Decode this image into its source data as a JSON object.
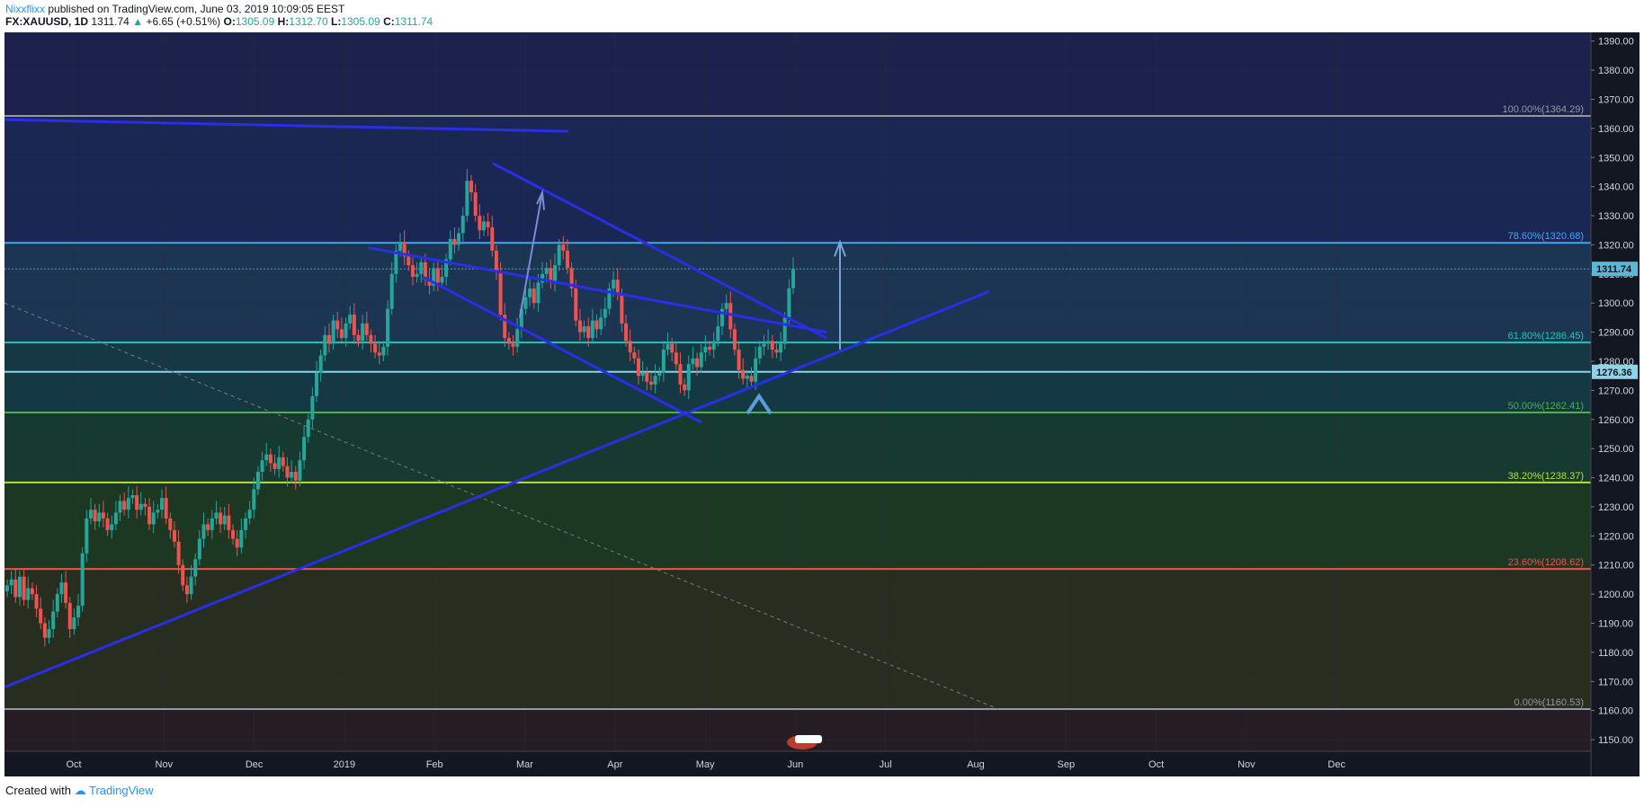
{
  "header": {
    "author": "Nixxflixx",
    "published": "published on TradingView.com, June 03, 2019 10:09:05 EEST",
    "symbol": "FX:XAUUSD, 1D",
    "price": "1311.74",
    "change": "+6.65 (+0.51%)",
    "o_label": "O:",
    "o_value": "1305.09",
    "h_label": "H:",
    "h_value": "1312.70",
    "l_label": "L:",
    "l_value": "1305.09",
    "c_label": "C:",
    "c_value": "1311.74"
  },
  "footer": {
    "created_with": "Created with",
    "brand": "TradingView"
  },
  "colors": {
    "background": "#131722",
    "up": "#26a69a",
    "down": "#ef5350",
    "trendline": "#2a2ee6",
    "price_tag": "#5db6d6",
    "support_tag": "#8fd3e6"
  },
  "chart_data": {
    "type": "candlestick",
    "symbol": "FX:XAUUSD",
    "timeframe": "1D",
    "ylim": [
      1146,
      1393
    ],
    "y_ticks": [
      1150,
      1160,
      1170,
      1180,
      1190,
      1200,
      1210,
      1220,
      1230,
      1240,
      1250,
      1260,
      1270,
      1280,
      1290,
      1300,
      1310,
      1320,
      1330,
      1340,
      1350,
      1360,
      1370,
      1380,
      1390
    ],
    "x_labels": [
      "Oct",
      "Nov",
      "Dec",
      "2019",
      "Feb",
      "Mar",
      "Apr",
      "May",
      "Jun",
      "Jul",
      "Aug",
      "Sep",
      "Oct",
      "Nov",
      "Dec"
    ],
    "last_price": "1311.74",
    "support_price": "1276.36",
    "fib_levels": [
      {
        "label": "100.00%(1364.29)",
        "value": 1364.29,
        "color": "#9598a1"
      },
      {
        "label": "78.60%(1320.68)",
        "value": 1320.68,
        "color": "#42a5f5"
      },
      {
        "label": "61.80%(1286.45)",
        "value": 1286.45,
        "color": "#26c6b0"
      },
      {
        "label": "50.00%(1262.41)",
        "value": 1262.41,
        "color": "#4caf50"
      },
      {
        "label": "38.20%(1238.37)",
        "value": 1238.37,
        "color": "#b6e03a"
      },
      {
        "label": "23.60%(1208.62)",
        "value": 1208.62,
        "color": "#ef5350"
      },
      {
        "label": "0.00%(1160.53)",
        "value": 1160.53,
        "color": "#9598a1"
      }
    ],
    "support_line": 1276.36,
    "candles_close": [
      1203,
      1205,
      1199,
      1206,
      1198,
      1202,
      1200,
      1195,
      1190,
      1185,
      1188,
      1194,
      1200,
      1204,
      1197,
      1188,
      1192,
      1196,
      1214,
      1226,
      1229,
      1225,
      1228,
      1226,
      1222,
      1224,
      1228,
      1232,
      1229,
      1233,
      1234,
      1229,
      1231,
      1230,
      1224,
      1228,
      1229,
      1233,
      1226,
      1222,
      1218,
      1210,
      1203,
      1200,
      1206,
      1212,
      1219,
      1224,
      1222,
      1226,
      1228,
      1224,
      1227,
      1222,
      1219,
      1216,
      1222,
      1226,
      1229,
      1236,
      1242,
      1246,
      1248,
      1245,
      1243,
      1247,
      1244,
      1240,
      1242,
      1239,
      1246,
      1254,
      1260,
      1268,
      1276,
      1282,
      1289,
      1286,
      1294,
      1291,
      1288,
      1293,
      1296,
      1289,
      1287,
      1293,
      1289,
      1286,
      1283,
      1282,
      1285,
      1298,
      1310,
      1318,
      1321,
      1316,
      1313,
      1309,
      1310,
      1314,
      1308,
      1306,
      1312,
      1307,
      1309,
      1315,
      1322,
      1320,
      1324,
      1330,
      1342,
      1338,
      1330,
      1325,
      1328,
      1326,
      1318,
      1311,
      1296,
      1288,
      1286,
      1285,
      1291,
      1298,
      1302,
      1305,
      1300,
      1307,
      1310,
      1312,
      1307,
      1313,
      1320,
      1318,
      1312,
      1305,
      1294,
      1290,
      1292,
      1288,
      1294,
      1291,
      1295,
      1298,
      1305,
      1308,
      1303,
      1293,
      1287,
      1283,
      1281,
      1275,
      1276,
      1273,
      1272,
      1275,
      1276,
      1284,
      1286,
      1283,
      1279,
      1272,
      1270,
      1279,
      1281,
      1278,
      1283,
      1285,
      1284,
      1287,
      1292,
      1298,
      1300,
      1291,
      1284,
      1277,
      1274,
      1275,
      1273,
      1281,
      1285,
      1286,
      1287,
      1284,
      1283,
      1286,
      1295,
      1305.09,
      1311.74
    ]
  }
}
